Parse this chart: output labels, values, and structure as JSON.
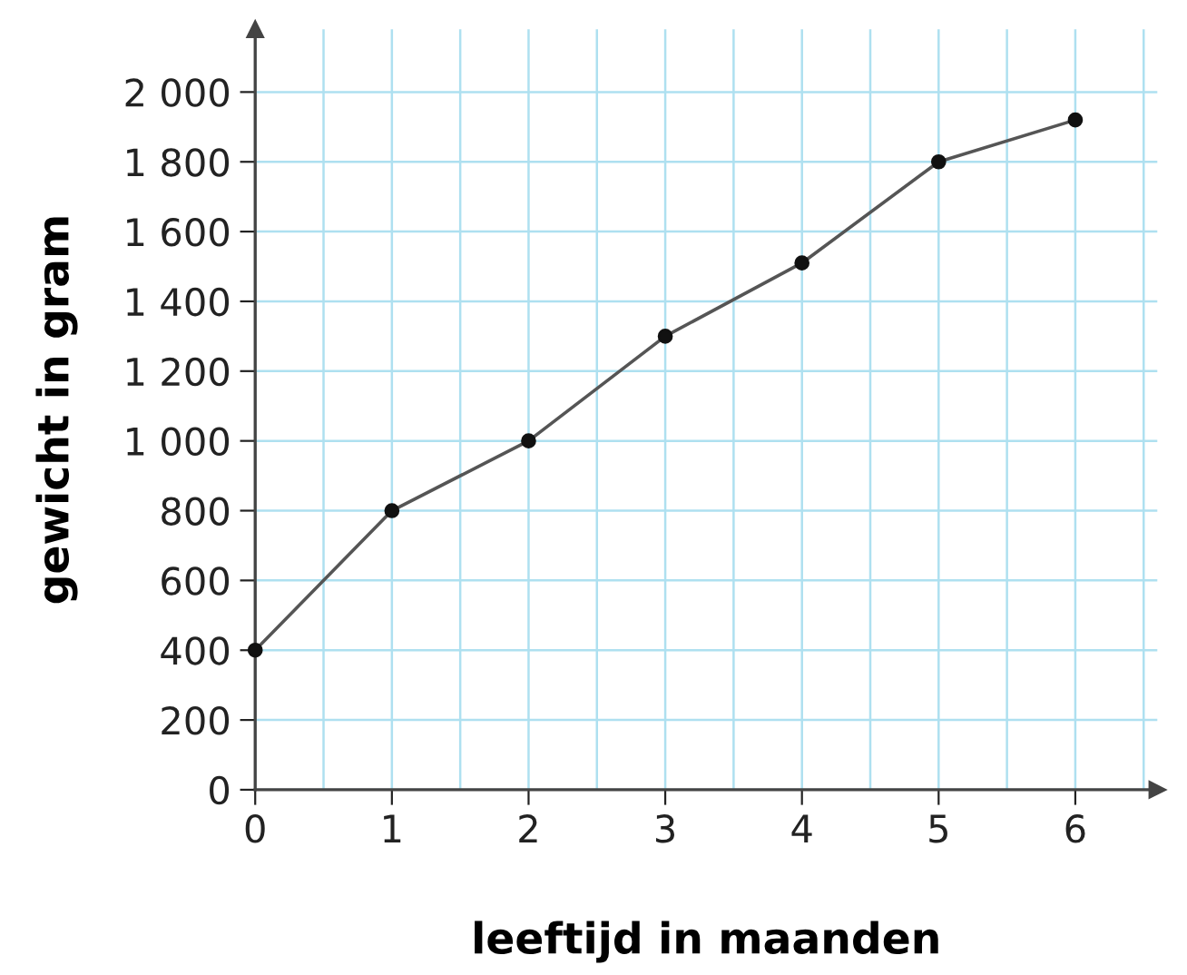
{
  "chart_data": {
    "type": "line",
    "xlabel": "leeftijd in maanden",
    "ylabel": "gewicht in gram",
    "x": [
      0,
      1,
      2,
      3,
      4,
      5,
      6
    ],
    "series": [
      {
        "color": "#555555",
        "values": [
          400,
          800,
          1000,
          1300,
          1510,
          1800,
          1920
        ]
      }
    ],
    "marker": "circle",
    "line_style": "solid",
    "xlim": [
      0,
      6.6
    ],
    "ylim": [
      0,
      2180
    ],
    "xticks": [
      0,
      {
        "value": 0.5,
        "label": null
      },
      1,
      {
        "value": 1.5,
        "label": null
      },
      2,
      {
        "value": 2.5,
        "label": null
      },
      3,
      {
        "value": 3.5,
        "label": null
      },
      4,
      {
        "value": 4.5,
        "label": null
      },
      5,
      {
        "value": 5.5,
        "label": null
      },
      6,
      {
        "value": 6.5,
        "label": null
      }
    ],
    "yticks": [
      0,
      200,
      400,
      600,
      800,
      {
        "value": 1000,
        "label": "1 000"
      },
      {
        "value": 1200,
        "label": "1 200"
      },
      {
        "value": 1400,
        "label": "1 400"
      },
      {
        "value": 1600,
        "label": "1 600"
      },
      {
        "value": 1800,
        "label": "1 800"
      },
      {
        "value": 2000,
        "label": "2 000"
      }
    ],
    "grid": true
  }
}
